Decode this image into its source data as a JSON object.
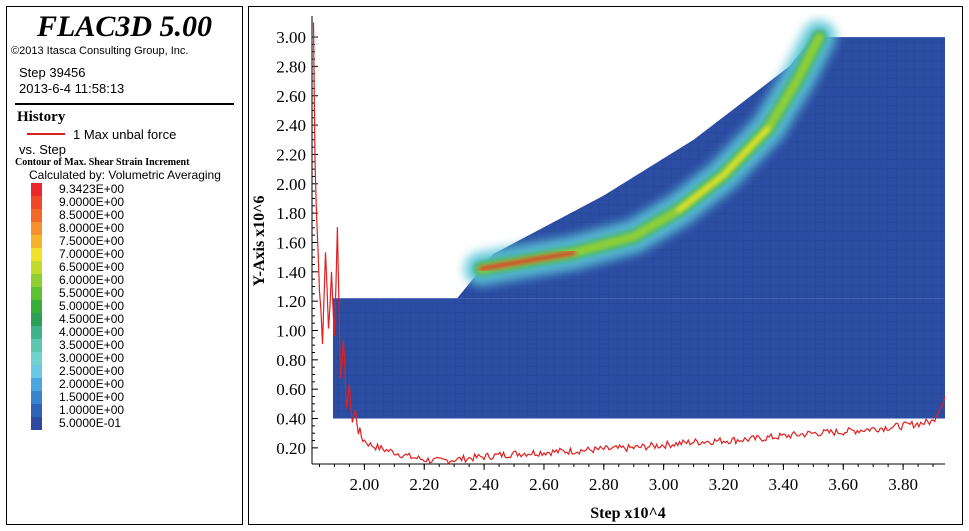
{
  "app": {
    "title": "FLAC3D 5.00",
    "copyright": "©2013 Itasca Consulting Group, Inc."
  },
  "step_info": {
    "step": "Step 39456",
    "datetime": "2013-6-4 11:58:13"
  },
  "history": {
    "title": "History",
    "item_label": "1 Max unbal force",
    "vs_label": "vs. Step",
    "color": "#e02020"
  },
  "contour": {
    "title": "Contour of Max. Shear Strain Increment",
    "calculated_by": "Calculated by: Volumetric Averaging",
    "levels": [
      {
        "label": "9.3423E+00",
        "color": "#e8282a"
      },
      {
        "label": "9.0000E+00",
        "color": "#ee4a2a"
      },
      {
        "label": "8.5000E+00",
        "color": "#f26a2a"
      },
      {
        "label": "8.0000E+00",
        "color": "#f5902c"
      },
      {
        "label": "7.5000E+00",
        "color": "#f6b42e"
      },
      {
        "label": "7.0000E+00",
        "color": "#f2e22c"
      },
      {
        "label": "6.5000E+00",
        "color": "#c2dc2e"
      },
      {
        "label": "6.0000E+00",
        "color": "#8fcf34"
      },
      {
        "label": "5.5000E+00",
        "color": "#5cc232"
      },
      {
        "label": "5.0000E+00",
        "color": "#3aae3a"
      },
      {
        "label": "4.5000E+00",
        "color": "#2d9e55"
      },
      {
        "label": "4.0000E+00",
        "color": "#3fb38a"
      },
      {
        "label": "3.5000E+00",
        "color": "#5cc6b0"
      },
      {
        "label": "3.0000E+00",
        "color": "#6fd2cf"
      },
      {
        "label": "2.5000E+00",
        "color": "#6cc6e6"
      },
      {
        "label": "2.0000E+00",
        "color": "#4ba6de"
      },
      {
        "label": "1.5000E+00",
        "color": "#3a84cc"
      },
      {
        "label": "1.0000E+00",
        "color": "#2f64b6"
      },
      {
        "label": "5.0000E-01",
        "color": "#2c4aa0"
      }
    ]
  },
  "chart_data": {
    "type": "line",
    "xlabel": "Step x10^4",
    "ylabel": "Y-Axis x10^6",
    "xlim": [
      1.825,
      3.94
    ],
    "ylim": [
      0.09,
      3.13
    ],
    "x_ticks": [
      "2.00",
      "2.20",
      "2.40",
      "2.60",
      "2.80",
      "3.00",
      "3.20",
      "3.40",
      "3.60",
      "3.80"
    ],
    "y_ticks": [
      "0.20",
      "0.40",
      "0.60",
      "0.80",
      "1.00",
      "1.20",
      "1.40",
      "1.60",
      "1.80",
      "2.00",
      "2.20",
      "2.40",
      "2.60",
      "2.80",
      "3.00"
    ],
    "series": [
      {
        "name": "1 Max unbal force",
        "color": "#e02020",
        "x": [
          1.83,
          1.835,
          1.84,
          1.85,
          1.86,
          1.87,
          1.88,
          1.89,
          1.9,
          1.91,
          1.92,
          1.93,
          1.94,
          1.95,
          1.96,
          1.97,
          1.98,
          1.99,
          2.0,
          2.02,
          2.05,
          2.08,
          2.1,
          2.15,
          2.2,
          2.25,
          2.3,
          2.35,
          2.4,
          2.5,
          2.6,
          2.7,
          2.8,
          2.9,
          3.0,
          3.1,
          3.2,
          3.3,
          3.4,
          3.5,
          3.6,
          3.7,
          3.8,
          3.9,
          3.94
        ],
        "values": [
          3.1,
          2.2,
          1.8,
          1.3,
          0.9,
          1.55,
          1.0,
          1.4,
          0.95,
          1.7,
          0.7,
          0.9,
          0.5,
          0.6,
          0.38,
          0.45,
          0.32,
          0.28,
          0.25,
          0.22,
          0.2,
          0.18,
          0.17,
          0.14,
          0.12,
          0.11,
          0.12,
          0.13,
          0.14,
          0.16,
          0.17,
          0.18,
          0.19,
          0.2,
          0.22,
          0.24,
          0.25,
          0.26,
          0.28,
          0.3,
          0.31,
          0.33,
          0.35,
          0.38,
          0.55
        ]
      }
    ],
    "model_zones": {
      "base_block": {
        "x": [
          1.895,
          3.94
        ],
        "y": [
          0.4,
          1.22
        ]
      },
      "slope_profile": [
        [
          2.31,
          1.22
        ],
        [
          2.43,
          1.52
        ],
        [
          2.8,
          1.92
        ],
        [
          3.1,
          2.3
        ],
        [
          3.42,
          2.8
        ],
        [
          3.5,
          3.0
        ],
        [
          3.94,
          3.0
        ],
        [
          3.94,
          1.22
        ]
      ],
      "shear_band": [
        [
          2.39,
          1.42
        ],
        [
          2.5,
          1.46
        ],
        [
          2.7,
          1.53
        ],
        [
          2.9,
          1.64
        ],
        [
          3.05,
          1.82
        ],
        [
          3.2,
          2.06
        ],
        [
          3.35,
          2.38
        ],
        [
          3.45,
          2.72
        ],
        [
          3.52,
          3.0
        ]
      ]
    }
  }
}
